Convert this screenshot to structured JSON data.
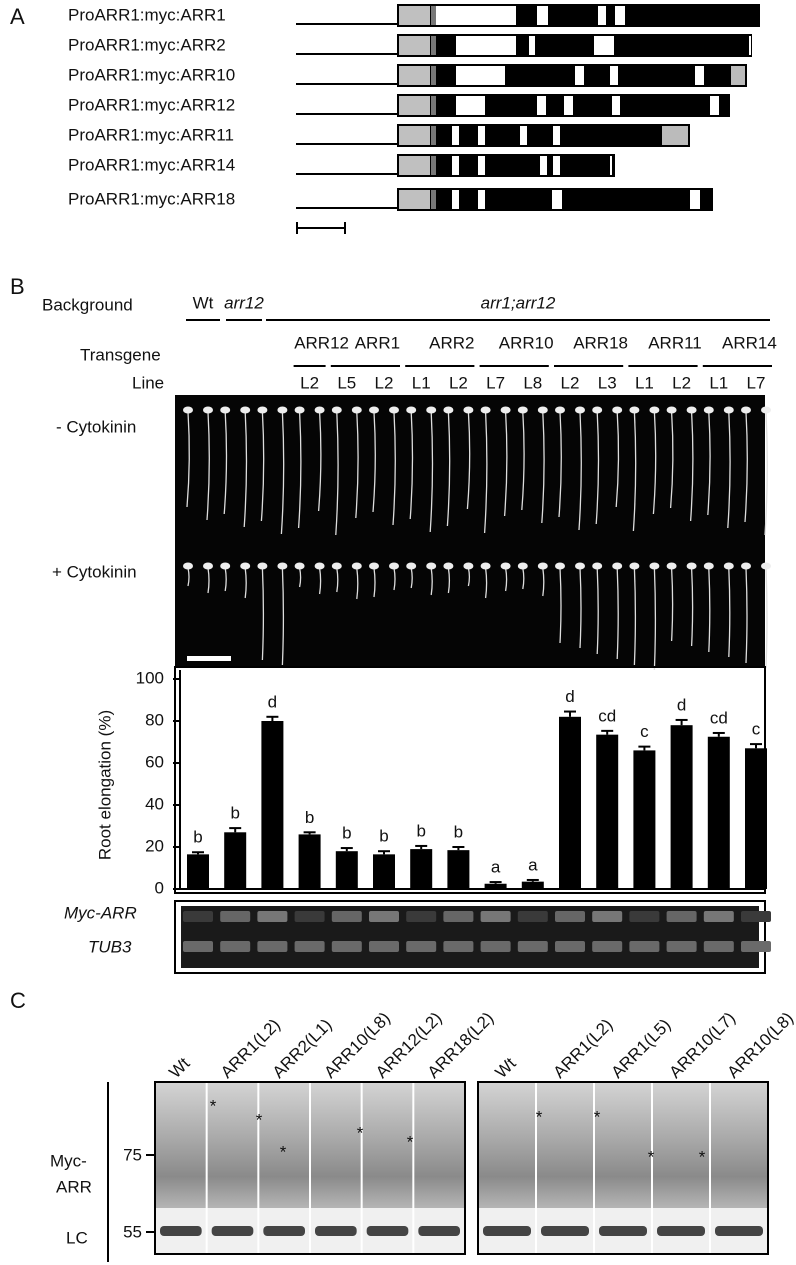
{
  "panel_a": {
    "label": "A",
    "constructs": [
      "ProARR1:myc:ARR1",
      "ProARR1:myc:ARR2",
      "ProARR1:myc:ARR10",
      "ProARR1:myc:ARR12",
      "ProARR1:myc:ARR11",
      "ProARR1:myc:ARR14",
      "ProARR1:myc:ARR18"
    ]
  },
  "panel_b": {
    "label": "B",
    "background_label": "Background",
    "backgrounds": [
      "Wt",
      "arr12",
      "arr1;arr12"
    ],
    "transgene_label": "Transgene",
    "line_label": "Line",
    "transgenes": [
      "ARR12",
      "ARR1",
      "ARR2",
      "ARR10",
      "ARR18",
      "ARR11",
      "ARR14"
    ],
    "lines": [
      "L2",
      "L5",
      "L2",
      "L1",
      "L2",
      "L7",
      "L8",
      "L2",
      "L3",
      "L1",
      "L2",
      "L1",
      "L7"
    ],
    "conditions": [
      "- Cytokinin",
      "+ Cytokinin"
    ],
    "gel_labels": [
      "Myc-ARR",
      "TUB3"
    ]
  },
  "chart_data": {
    "type": "bar",
    "ylabel": "Root elongation (%)",
    "values": [
      16.5,
      27,
      80,
      26,
      18,
      16.5,
      19,
      18.5,
      2.5,
      3.5,
      82,
      73.5,
      66,
      78,
      72.5,
      67
    ],
    "errors": [
      1,
      2,
      2,
      1,
      1.5,
      1.5,
      1.5,
      1.5,
      0.8,
      0.8,
      2.5,
      1.8,
      1.8,
      2.5,
      1.8,
      2
    ],
    "annotations": [
      "b",
      "b",
      "d",
      "b",
      "b",
      "b",
      "b",
      "b",
      "a",
      "a",
      "d",
      "cd",
      "c",
      "d",
      "cd",
      "c"
    ],
    "color": "#000000",
    "ylim": [
      0,
      100
    ],
    "yticks": [
      0,
      20,
      40,
      60,
      80,
      100
    ]
  },
  "panel_c": {
    "label": "C",
    "left_lanes": [
      "Wt",
      "ARR1(L2)",
      "ARR2(L1)",
      "ARR10(L8)",
      "ARR12(L2)",
      "ARR18(L2)"
    ],
    "right_lanes": [
      "Wt",
      "ARR1(L2)",
      "ARR1(L5)",
      "ARR10(L7)",
      "ARR10(L8)"
    ],
    "y_label": [
      "Myc-",
      "ARR"
    ],
    "markers": [
      "75",
      "55"
    ],
    "loading_label": "LC",
    "asterisks": [
      "*",
      "*",
      "*",
      "*",
      "*",
      "*",
      "*",
      "*",
      "*"
    ]
  }
}
